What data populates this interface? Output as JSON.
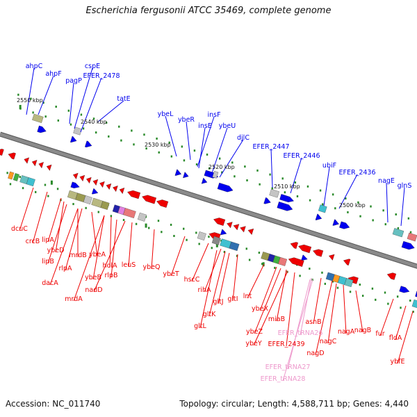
{
  "title": "Escherichia fergusonii ATCC 35469, complete genome",
  "footer": {
    "accession": "Accession: NC_011740",
    "topology": "Topology: circular; Length: 4,588,711 bp; Genes: 4,440"
  },
  "colors": {
    "forward_gene": "#0000ee",
    "reverse_gene": "#ee0000",
    "trna": "#ee99cc",
    "backbone": "#8a8a8a"
  },
  "kbp_ticks": [
    "2550 kbp",
    "2540 kbp",
    "2530 kbp",
    "2520 kbp",
    "2510 kbp",
    "2500 kbp"
  ],
  "top_genes": [
    "ahpC",
    "ahpF",
    "pagP",
    "cspE",
    "EFER_2478",
    "tatE",
    "ybeL",
    "ybeR",
    "insF",
    "insE",
    "ybeU",
    "djlC",
    "EFER_2447",
    "EFER_2446",
    "ubiF",
    "EFER_2436",
    "nagE",
    "glnS"
  ],
  "bottom_genes": [
    "dcuC",
    "crcB",
    "lipA",
    "ybeD",
    "lipB",
    "mrdB",
    "rlpA",
    "ybeA",
    "dacA",
    "ybeB",
    "holA",
    "rlpB",
    "leuS",
    "ybeQ",
    "nadD",
    "mrdA",
    "ybeT",
    "hscC",
    "rihA",
    "gltJ",
    "gltI",
    "gltK",
    "gltL",
    "lnt",
    "ybeX",
    "miaB",
    "ybeZ",
    "ybeY",
    "EFER_2439",
    "asnB",
    "nagC",
    "nagA",
    "nagB",
    "nagD",
    "fur",
    "fldA",
    "ybfE"
  ],
  "trna_genes": [
    "EFER_tRNA26",
    "EFER_tRNA27",
    "EFER_tRNA28"
  ]
}
